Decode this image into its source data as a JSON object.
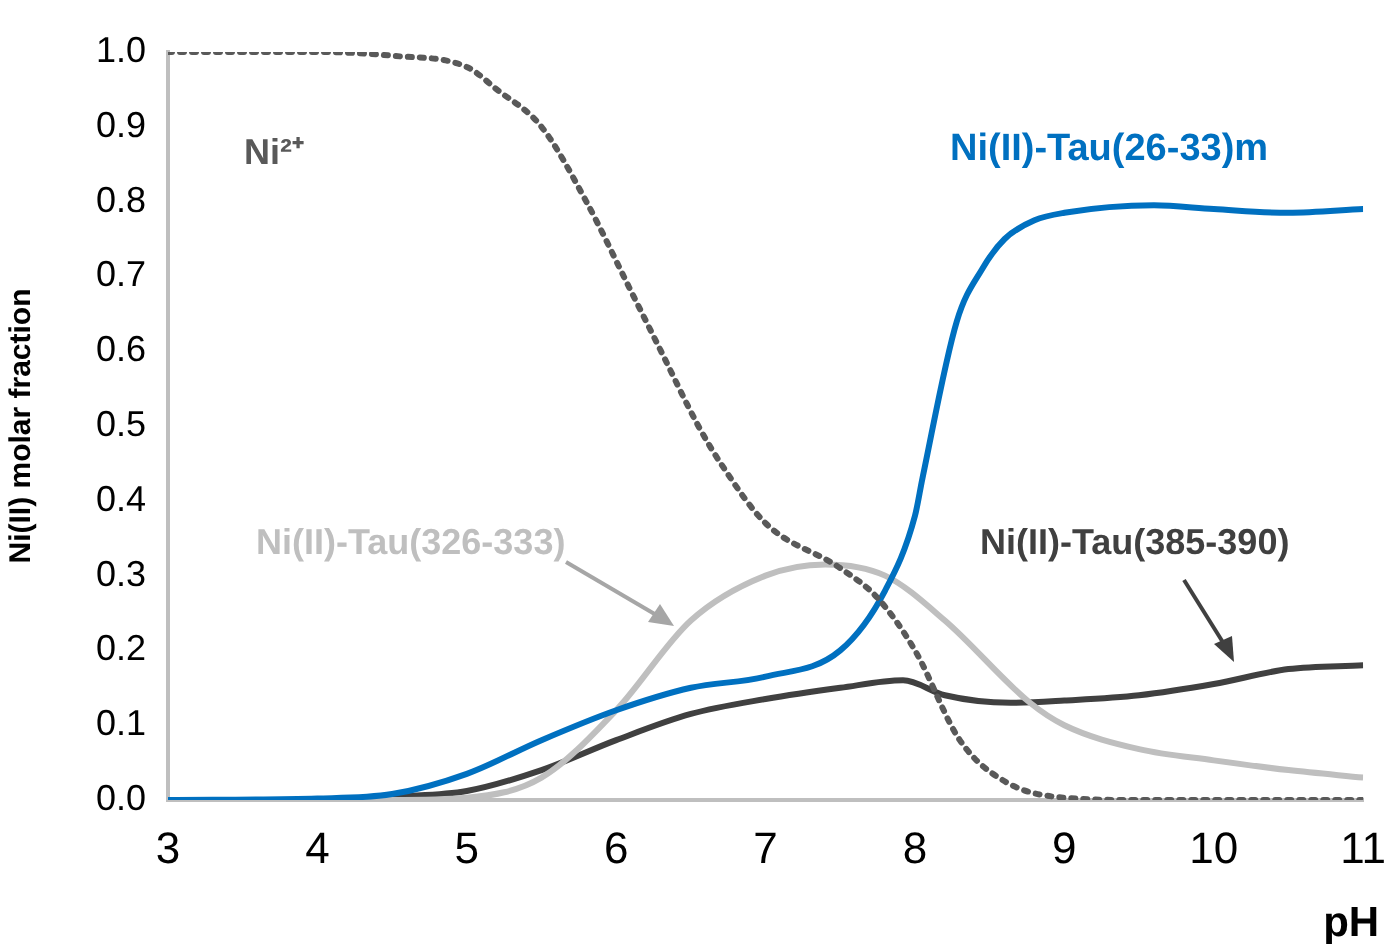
{
  "chart_data": {
    "type": "line",
    "xlabel": "pH",
    "ylabel": "Ni(II) molar fraction",
    "xlim": [
      3,
      11
    ],
    "xticks": [
      3,
      4,
      5,
      6,
      7,
      8,
      9,
      10,
      11
    ],
    "ylim": [
      0,
      1
    ],
    "yticks": [
      {
        "value": 0,
        "label": "0.0"
      },
      {
        "value": 0.1,
        "label": "0.1"
      },
      {
        "value": 0.2,
        "label": "0.2"
      },
      {
        "value": 0.3,
        "label": "0.3"
      },
      {
        "value": 0.4,
        "label": "0.4"
      },
      {
        "value": 0.5,
        "label": "0.5"
      },
      {
        "value": 0.6,
        "label": "0.6"
      },
      {
        "value": 0.7,
        "label": "0.7"
      },
      {
        "value": 0.8,
        "label": "0.8"
      },
      {
        "value": 0.9,
        "label": "0.9"
      },
      {
        "value": 1,
        "label": "1.0"
      }
    ],
    "grid": false,
    "legend": false,
    "marker": "none",
    "series": [
      {
        "name": "Ni²⁺",
        "color": "#595959",
        "line_style": "dotted",
        "x": [
          3,
          4,
          4.5,
          5,
          5.2,
          5.5,
          5.8,
          6.1,
          6.3,
          6.55,
          6.7,
          7,
          7.5,
          7.75,
          8,
          8.3,
          8.6,
          9,
          9.5,
          10,
          11
        ],
        "values": [
          1,
          1,
          0.995,
          0.98,
          0.95,
          0.9,
          0.8,
          0.68,
          0.6,
          0.5,
          0.45,
          0.37,
          0.31,
          0.27,
          0.2,
          0.08,
          0.025,
          0.003,
          0,
          0,
          0
        ]
      },
      {
        "name": "Ni(II)-Tau(26-33)m",
        "color": "#0070c0",
        "x": [
          3,
          4,
          4.5,
          5,
          5.5,
          6,
          6.5,
          7,
          7.5,
          7.8,
          8,
          8.05,
          8.28,
          8.45,
          8.6,
          8.8,
          9,
          9.6,
          10,
          10.5,
          11
        ],
        "values": [
          0,
          0.002,
          0.008,
          0.035,
          0.08,
          0.12,
          0.15,
          0.165,
          0.2,
          0.28,
          0.38,
          0.43,
          0.64,
          0.71,
          0.75,
          0.775,
          0.785,
          0.795,
          0.79,
          0.785,
          0.79
        ]
      },
      {
        "name": "Ni(II)-Tau(326-333)",
        "color": "#bfbfbf",
        "x": [
          3,
          4.5,
          5,
          5.5,
          6,
          6.5,
          7,
          7.4,
          7.8,
          8.2,
          8.77,
          9,
          9.5,
          10,
          10.5,
          11
        ],
        "values": [
          0,
          0,
          0.003,
          0.03,
          0.12,
          0.24,
          0.3,
          0.315,
          0.3,
          0.24,
          0.13,
          0.1,
          0.068,
          0.053,
          0.04,
          0.03
        ]
      },
      {
        "name": "Ni(II)-Tau(385-390)",
        "color": "#404040",
        "x": [
          4.5,
          5,
          5.5,
          6,
          6.5,
          7,
          7.5,
          7.92,
          8.2,
          8.64,
          9,
          9.5,
          10,
          10.5,
          11
        ],
        "values": [
          0.004,
          0.012,
          0.04,
          0.08,
          0.115,
          0.135,
          0.15,
          0.16,
          0.14,
          0.13,
          0.133,
          0.14,
          0.155,
          0.175,
          0.18
        ]
      }
    ]
  }
}
